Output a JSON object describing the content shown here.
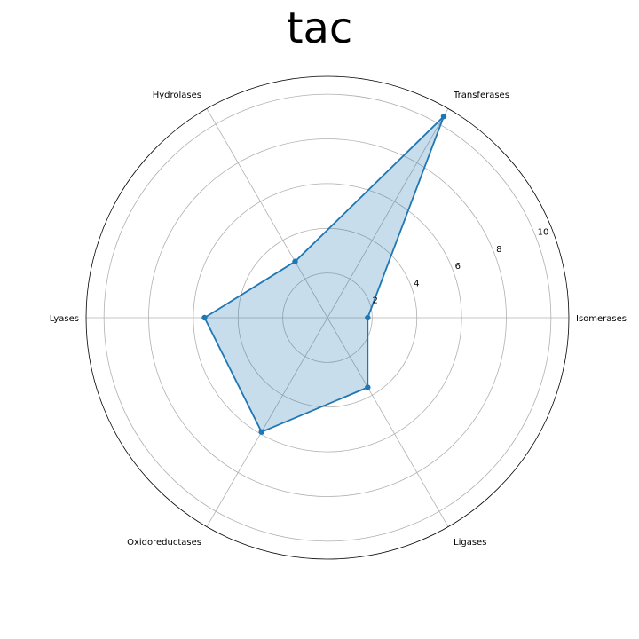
{
  "chart_data": {
    "type": "radar",
    "title": "tac",
    "categories": [
      "Isomerases",
      "Transferases",
      "Hydrolases",
      "Lyases",
      "Oxidoreductases",
      "Ligases"
    ],
    "series": [
      {
        "values": [
          1.8,
          10.4,
          2.9,
          5.5,
          5.9,
          3.6
        ]
      }
    ],
    "rlim": [
      0,
      10.8
    ],
    "rticks": [
      2,
      4,
      6,
      8,
      10
    ],
    "rtick_labels": [
      "2",
      "4",
      "6",
      "8",
      "10"
    ],
    "grid": true,
    "line_color": "#1f77b4",
    "fill_color": "#1f77b4",
    "fill_opacity": 0.25,
    "grid_color": "#b0b0b0",
    "frame_color": "#000000"
  }
}
